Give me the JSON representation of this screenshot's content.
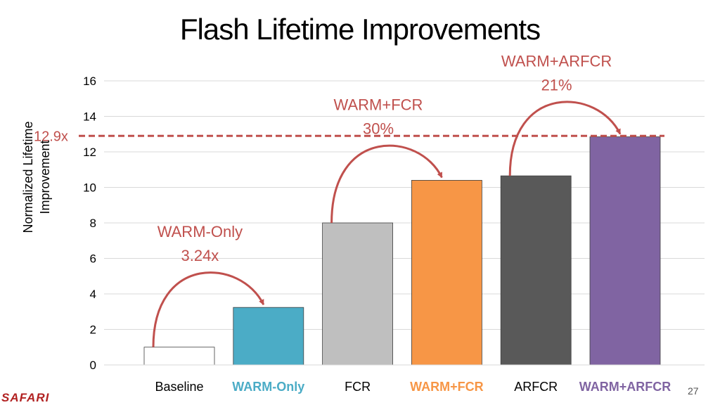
{
  "slide": {
    "title": "Flash Lifetime Improvements",
    "logo": "SAFARI",
    "page_number": "27"
  },
  "chart_data": {
    "type": "bar",
    "title": "Flash Lifetime Improvements",
    "ylabel_lines": [
      "Normalized Lifetime",
      "Improvement"
    ],
    "xlabel": "",
    "ylim": [
      0,
      16
    ],
    "yticks": [
      0,
      2,
      4,
      6,
      8,
      10,
      12,
      14,
      16
    ],
    "grid": true,
    "categories": [
      "Baseline",
      "WARM-Only",
      "FCR",
      "WARM+FCR",
      "ARFCR",
      "WARM+ARFCR"
    ],
    "values": [
      1,
      3.24,
      8,
      10.4,
      10.65,
      12.85
    ],
    "bar_colors": [
      "#ffffff",
      "#4bacc6",
      "#bfbfbf",
      "#f79646",
      "#595959",
      "#8064a2"
    ],
    "label_colors": [
      "#000000",
      "#4bacc6",
      "#000000",
      "#f79646",
      "#000000",
      "#8064a2"
    ],
    "label_bold": [
      false,
      true,
      false,
      true,
      false,
      true
    ],
    "reference_line": {
      "value": 12.9,
      "label": "12.9x",
      "color": "#c0504d",
      "style": "dashed"
    },
    "annotations": [
      {
        "from": 0,
        "to": 1,
        "text": [
          "WARM-Only",
          "3.24x"
        ],
        "color": "#c0504d"
      },
      {
        "from": 2,
        "to": 3,
        "text": [
          "WARM+FCR",
          "30%"
        ],
        "color": "#c0504d"
      },
      {
        "from": 4,
        "to": 5,
        "text": [
          "WARM+ARFCR",
          "21%"
        ],
        "color": "#c0504d"
      }
    ]
  }
}
